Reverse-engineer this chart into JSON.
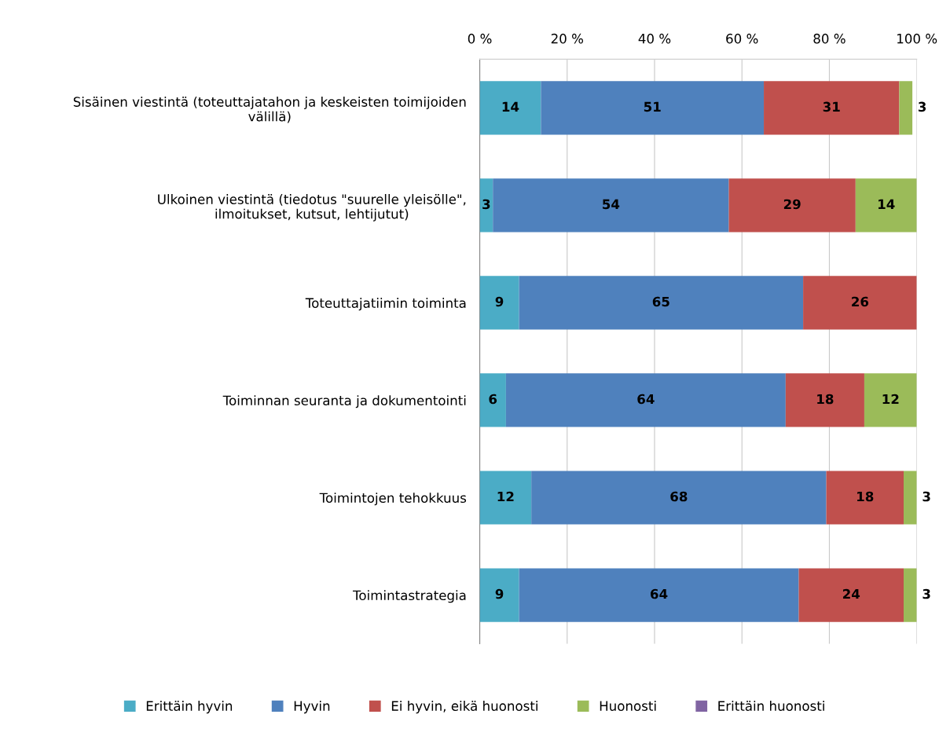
{
  "chart_data": {
    "type": "bar",
    "orientation": "horizontal",
    "stacked": true,
    "categories": [
      "Sisäinen viestintä (toteuttajatahon ja keskeisten toimijoiden\nvälillä)",
      "Ulkoinen viestintä (tiedotus \"suurelle yleisölle\",\nilmoitukset, kutsut, lehtijutut)",
      "Toteuttajatiimin toiminta",
      "Toiminnan seuranta ja dokumentointi",
      "Toimintojen tehokkuus",
      "Toimintastrategia"
    ],
    "series": [
      {
        "name": "Erittäin hyvin",
        "color": "#4bacc6",
        "values": [
          14,
          3,
          9,
          6,
          11.8,
          9
        ],
        "value_labels": [
          "14",
          "3",
          "9",
          "6",
          "12",
          "9"
        ]
      },
      {
        "name": "Hyvin",
        "color": "#4f81bd",
        "values": [
          51,
          54,
          65,
          64,
          67.5,
          64
        ],
        "value_labels": [
          "51",
          "54",
          "65",
          "64",
          "68",
          "64"
        ]
      },
      {
        "name": "Ei hyvin, eikä huonosti",
        "color": "#c0504d",
        "values": [
          31,
          29,
          26,
          18,
          17.7,
          24
        ],
        "value_labels": [
          "31",
          "29",
          "26",
          "18",
          "18",
          "24"
        ]
      },
      {
        "name": "Huonosti",
        "color": "#9bbb59",
        "values": [
          3,
          14,
          null,
          12,
          3,
          3
        ],
        "value_labels": [
          "3",
          "14",
          null,
          "12",
          "3",
          "3"
        ]
      },
      {
        "name": "Erittäin huonosti",
        "color": "#8064a2",
        "values": [
          null,
          null,
          null,
          null,
          null,
          null
        ]
      }
    ],
    "xlim": [
      0,
      100
    ],
    "xticks": [
      {
        "value": 0,
        "label": "0 %"
      },
      {
        "value": 20,
        "label": "20 %"
      },
      {
        "value": 40,
        "label": "40 %"
      },
      {
        "value": 60,
        "label": "60 %"
      },
      {
        "value": 80,
        "label": "80 %"
      },
      {
        "value": 100,
        "label": "100 %"
      }
    ],
    "grid": "x",
    "legend": "bottom"
  }
}
